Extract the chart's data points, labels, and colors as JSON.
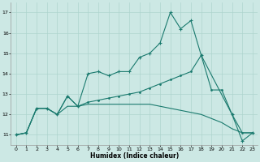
{
  "xlabel": "Humidex (Indice chaleur)",
  "bg_color": "#cce8e4",
  "grid_color": "#aed4ce",
  "line_color": "#1a7a6e",
  "xlim": [
    -0.5,
    23.5
  ],
  "ylim": [
    10.5,
    17.5
  ],
  "yticks": [
    11,
    12,
    13,
    14,
    15,
    16,
    17
  ],
  "xticks": [
    0,
    1,
    2,
    3,
    4,
    5,
    6,
    7,
    8,
    9,
    10,
    11,
    12,
    13,
    14,
    15,
    16,
    17,
    18,
    19,
    20,
    21,
    22,
    23
  ],
  "line1_x": [
    0,
    1,
    2,
    3,
    4,
    5,
    6,
    7,
    8,
    9,
    10,
    11,
    12,
    13,
    14,
    15,
    16,
    17,
    18,
    21,
    22,
    23
  ],
  "line1_y": [
    11.0,
    11.1,
    12.3,
    12.3,
    12.0,
    12.9,
    12.4,
    14.0,
    14.1,
    13.9,
    14.1,
    14.1,
    14.8,
    15.0,
    15.5,
    17.0,
    16.2,
    16.6,
    14.9,
    12.0,
    10.7,
    11.1
  ],
  "line2_x": [
    0,
    1,
    2,
    3,
    4,
    5,
    6,
    7,
    8,
    9,
    10,
    11,
    12,
    13,
    14,
    15,
    16,
    17,
    18,
    19,
    20,
    21,
    22,
    23
  ],
  "line2_y": [
    11.0,
    11.1,
    12.3,
    12.3,
    12.0,
    12.9,
    12.4,
    12.6,
    12.7,
    12.8,
    12.9,
    13.0,
    13.1,
    13.3,
    13.5,
    13.7,
    13.9,
    14.1,
    14.9,
    13.2,
    13.2,
    12.0,
    11.1,
    11.1
  ],
  "line3_x": [
    0,
    1,
    2,
    3,
    4,
    5,
    6,
    7,
    8,
    9,
    10,
    11,
    12,
    13,
    14,
    15,
    16,
    17,
    18,
    19,
    20,
    21,
    22,
    23
  ],
  "line3_y": [
    11.0,
    11.1,
    12.3,
    12.3,
    12.0,
    12.4,
    12.4,
    12.5,
    12.5,
    12.5,
    12.5,
    12.5,
    12.5,
    12.5,
    12.4,
    12.3,
    12.2,
    12.1,
    12.0,
    11.8,
    11.6,
    11.3,
    11.1,
    11.1
  ]
}
